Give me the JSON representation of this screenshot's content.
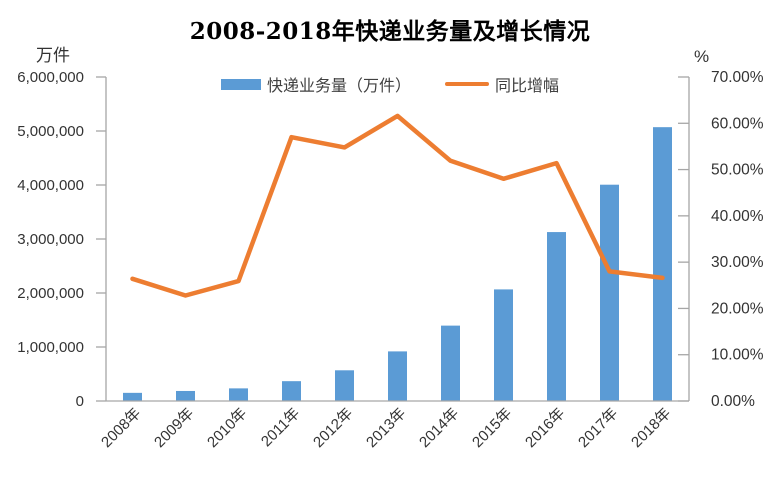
{
  "title": "2008-2018年快递业务量及增长情况",
  "left_axis_unit": "万件",
  "right_axis_unit": "%",
  "legend": {
    "bar_label": "快递业务量（万件）",
    "line_label": "同比增幅"
  },
  "colors": {
    "bar": "#5B9BD5",
    "line": "#ED7D31",
    "axis_line": "#A6A6A6",
    "tick_text": "#333333",
    "title_text": "#000000"
  },
  "chart_data": {
    "type": "combo",
    "title": "2008-2018年快递业务量及增长情况",
    "categories": [
      "2008年",
      "2009年",
      "2010年",
      "2011年",
      "2012年",
      "2013年",
      "2014年",
      "2015年",
      "2016年",
      "2017年",
      "2018年"
    ],
    "series": [
      {
        "name": "快递业务量（万件）",
        "type": "bar",
        "axis": "left",
        "color": "#5B9BD5",
        "values": [
          151000,
          185800,
          233900,
          367300,
          568500,
          918700,
          1395900,
          2066600,
          3128300,
          4005600,
          5071000
        ]
      },
      {
        "name": "同比增幅",
        "type": "line",
        "axis": "right",
        "color": "#ED7D31",
        "values": [
          26.4,
          22.8,
          25.9,
          57.0,
          54.8,
          61.6,
          51.9,
          48.0,
          51.4,
          28.0,
          26.6
        ]
      }
    ],
    "left_axis": {
      "label": "万件",
      "min": 0,
      "max": 6000000,
      "step": 1000000,
      "tick_labels": [
        "0",
        "1,000,000",
        "2,000,000",
        "3,000,000",
        "4,000,000",
        "5,000,000",
        "6,000,000"
      ]
    },
    "right_axis": {
      "label": "%",
      "min": 0,
      "max": 70,
      "step": 10,
      "tick_labels": [
        "0.00%",
        "10.00%",
        "20.00%",
        "30.00%",
        "40.00%",
        "50.00%",
        "60.00%",
        "70.00%"
      ]
    },
    "grid": false,
    "legend_position": "top-center"
  }
}
